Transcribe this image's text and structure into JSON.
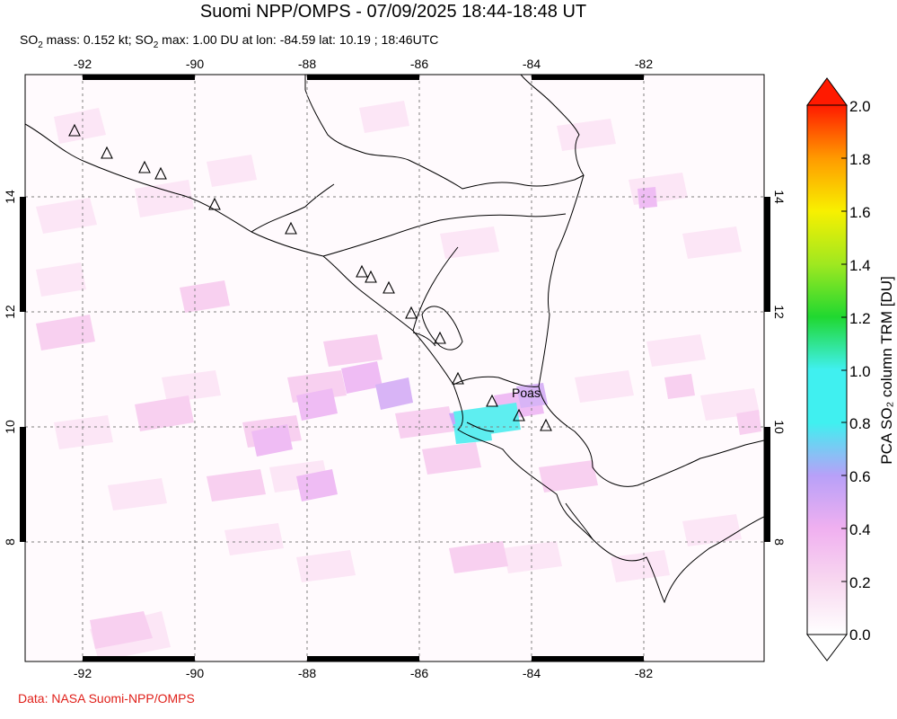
{
  "header": {
    "title": "Suomi NPP/OMPS - 07/09/2025 18:44-18:48 UT",
    "subtitle_parts": {
      "so2_a": "SO",
      "sub_a": "2",
      "mass_text": " mass: 0.152 kt; SO",
      "sub_b": "2",
      "max_text": " max: 1.00 DU at lon: -84.59 lat: 10.19 ; 18:46UTC"
    }
  },
  "map": {
    "lon_ticks": [
      "-92",
      "-90",
      "-88",
      "-86",
      "-84",
      "-82"
    ],
    "lat_ticks": [
      "14",
      "12",
      "10",
      "8"
    ],
    "volcano_label": "Poas"
  },
  "colorbar": {
    "title": "PCA SO₂ column TRM [DU]",
    "labels": [
      "2.0",
      "1.8",
      "1.6",
      "1.4",
      "1.2",
      "1.0",
      "0.8",
      "0.6",
      "0.4",
      "0.2",
      "0.0"
    ],
    "colors": {
      "top": "#ff1a00",
      "orange": "#ff9a00",
      "yellow": "#f8f000",
      "green": "#38d840",
      "cyan": "#40f0f0",
      "blue": "#8aa0ff",
      "violet": "#c8a0f8",
      "pink": "#f8c8f0",
      "white": "#fffaff"
    }
  },
  "footer": {
    "credit": "Data: NASA Suomi-NPP/OMPS"
  }
}
